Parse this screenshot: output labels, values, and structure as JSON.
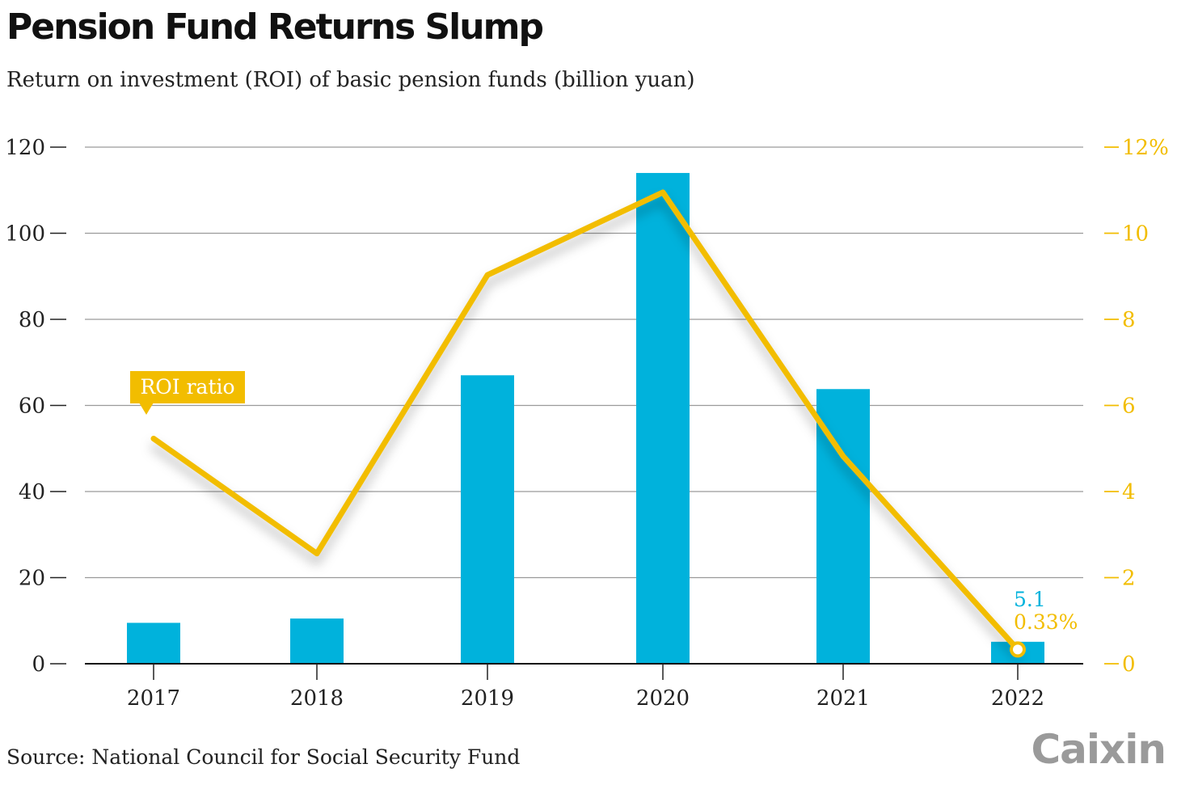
{
  "header": {
    "title": "Pension Fund Returns Slump",
    "subtitle": "Return on investment (ROI) of basic pension funds (billion yuan)"
  },
  "footer": {
    "source": "Source: National Council for Social Security Fund",
    "brand": "Caixin"
  },
  "chart_data": {
    "type": "bar",
    "categories": [
      "2017",
      "2018",
      "2019",
      "2020",
      "2021",
      "2022"
    ],
    "series": [
      {
        "type": "bar",
        "axis": "left",
        "values": [
          9.5,
          10.5,
          67,
          114,
          63.8,
          5.1
        ],
        "color": "#00b2dc"
      },
      {
        "type": "line",
        "name": "ROI ratio",
        "axis": "right",
        "values": [
          5.23,
          2.56,
          9.03,
          10.95,
          4.82,
          0.33
        ],
        "color": "#f2bd00"
      }
    ],
    "y_left": {
      "range": [
        0,
        120
      ],
      "ticks": [
        "0",
        "20",
        "40",
        "60",
        "80",
        "100",
        "120"
      ]
    },
    "y_right": {
      "range": [
        0,
        12
      ],
      "ticks": [
        "0",
        "2",
        "4",
        "6",
        "8",
        "10",
        "12%"
      ]
    },
    "grid": true,
    "annotations": {
      "legend_label": "ROI ratio",
      "last_bar_label": "5.1",
      "last_line_label": "0.33%"
    }
  }
}
